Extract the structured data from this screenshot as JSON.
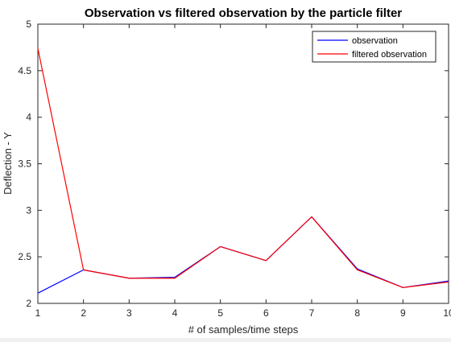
{
  "chart_data": {
    "type": "line",
    "title": "Observation vs filtered observation by the particle filter",
    "xlabel": "# of samples/time steps",
    "ylabel": "Deflection - Y",
    "xlim": [
      1,
      10
    ],
    "ylim": [
      2,
      5
    ],
    "xticks": [
      "1",
      "2",
      "3",
      "4",
      "5",
      "6",
      "7",
      "8",
      "9",
      "10"
    ],
    "yticks": [
      "2",
      "2.5",
      "3",
      "3.5",
      "4",
      "4.5",
      "5"
    ],
    "grid": false,
    "legend_position": "top-right",
    "x": [
      1,
      2,
      3,
      4,
      5,
      6,
      7,
      8,
      9,
      10
    ],
    "series": [
      {
        "name": "observation",
        "color": "#0000ff",
        "values": [
          2.11,
          2.36,
          2.27,
          2.28,
          2.61,
          2.46,
          2.93,
          2.37,
          2.17,
          2.24
        ]
      },
      {
        "name": "filtered observation",
        "color": "#ff0000",
        "values": [
          4.74,
          2.36,
          2.27,
          2.27,
          2.61,
          2.46,
          2.93,
          2.36,
          2.17,
          2.23
        ]
      }
    ]
  }
}
